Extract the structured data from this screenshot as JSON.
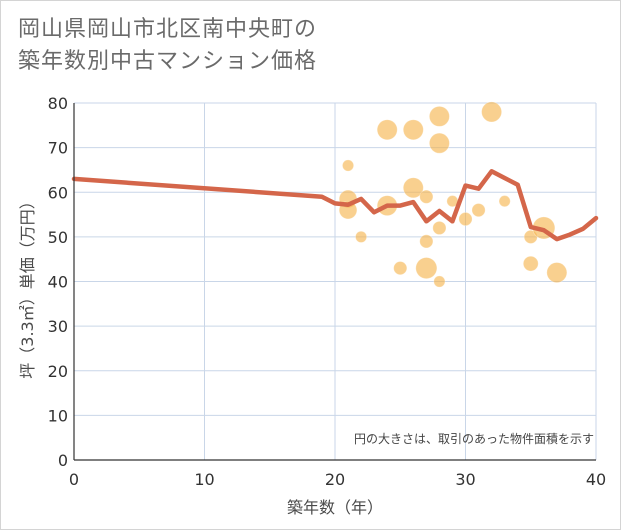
{
  "title_lines": [
    "岡山県岡山市北区南中央町の",
    "築年数別中古マンション価格"
  ],
  "chart_data": {
    "type": "scatter",
    "title": "岡山県岡山市北区南中央町の築年数別中古マンション価格",
    "xlabel": "築年数（年）",
    "ylabel": "坪（3.3㎡）単価（万円）",
    "xlim": [
      0,
      40
    ],
    "ylim": [
      0,
      80
    ],
    "x_ticks": [
      0,
      10,
      20,
      30,
      40
    ],
    "y_ticks": [
      0,
      10,
      20,
      30,
      40,
      50,
      60,
      70,
      80
    ],
    "grid": true,
    "note": "円の大きさは、取引のあった物件面積を示す",
    "colors": {
      "bubble": "#f5b34a",
      "line": "#d4664a",
      "grid": "#c9d6e8",
      "axis": "#333333"
    },
    "bubbles": [
      {
        "x": 21,
        "y": 66,
        "size": 1
      },
      {
        "x": 21,
        "y": 58.5,
        "size": 3
      },
      {
        "x": 21,
        "y": 56,
        "size": 3
      },
      {
        "x": 22,
        "y": 50,
        "size": 1
      },
      {
        "x": 24,
        "y": 74,
        "size": 4
      },
      {
        "x": 24,
        "y": 57,
        "size": 4
      },
      {
        "x": 25,
        "y": 43,
        "size": 1.5
      },
      {
        "x": 26,
        "y": 74,
        "size": 4
      },
      {
        "x": 26,
        "y": 61,
        "size": 4
      },
      {
        "x": 27,
        "y": 59,
        "size": 1.5
      },
      {
        "x": 27,
        "y": 49,
        "size": 1.5
      },
      {
        "x": 27,
        "y": 43,
        "size": 4.5
      },
      {
        "x": 28,
        "y": 77,
        "size": 4
      },
      {
        "x": 28,
        "y": 71,
        "size": 4
      },
      {
        "x": 28,
        "y": 52,
        "size": 1.5
      },
      {
        "x": 28,
        "y": 40,
        "size": 1
      },
      {
        "x": 29,
        "y": 58,
        "size": 1
      },
      {
        "x": 30,
        "y": 54,
        "size": 1.5
      },
      {
        "x": 31,
        "y": 56,
        "size": 1.5
      },
      {
        "x": 32,
        "y": 78,
        "size": 4
      },
      {
        "x": 33,
        "y": 58,
        "size": 1
      },
      {
        "x": 35,
        "y": 50,
        "size": 1.5
      },
      {
        "x": 35,
        "y": 44,
        "size": 2
      },
      {
        "x": 36,
        "y": 52,
        "size": 5
      },
      {
        "x": 37,
        "y": 42,
        "size": 4
      }
    ],
    "trend": {
      "x": [
        0,
        19,
        20,
        21,
        22,
        23,
        24,
        25,
        26,
        27,
        28,
        29,
        30,
        31,
        32,
        33,
        34,
        35,
        36,
        37,
        38,
        39,
        40
      ],
      "y": [
        63,
        59,
        57.5,
        57.2,
        58.5,
        55.5,
        57,
        57,
        57.8,
        53.5,
        55.8,
        53.5,
        61.5,
        60.8,
        64.7,
        63.2,
        61.7,
        52.2,
        51.5,
        49.5,
        50.5,
        51.8,
        54.2
      ]
    }
  }
}
